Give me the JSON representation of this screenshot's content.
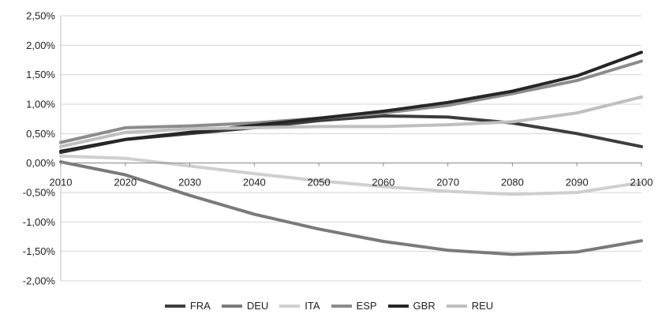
{
  "chart_data": {
    "type": "line",
    "title": "",
    "xlabel": "",
    "ylabel": "",
    "x": [
      2010,
      2020,
      2030,
      2040,
      2050,
      2060,
      2070,
      2080,
      2090,
      2100
    ],
    "x_tick_labels": [
      "2010",
      "2020",
      "2030",
      "2040",
      "2050",
      "2060",
      "2070",
      "2080",
      "2090",
      "2100"
    ],
    "y_tick_labels": [
      "2,50%",
      "2,00%",
      "1,50%",
      "1,00%",
      "0,50%",
      "0,00%",
      "-0,50%",
      "-1,00%",
      "-1,50%",
      "-2,00%"
    ],
    "ylim": [
      -2.0,
      2.5
    ],
    "y_unit": "%",
    "grid": "horizontal",
    "legend_position": "bottom",
    "series": [
      {
        "name": "FRA",
        "color": "#3d3d3d",
        "values": [
          0.18,
          0.4,
          0.5,
          0.6,
          0.72,
          0.8,
          0.78,
          0.68,
          0.5,
          0.28
        ]
      },
      {
        "name": "DEU",
        "color": "#7a7a7a",
        "values": [
          0.02,
          -0.2,
          -0.55,
          -0.87,
          -1.12,
          -1.33,
          -1.48,
          -1.55,
          -1.51,
          -1.32
        ]
      },
      {
        "name": "ITA",
        "color": "#cfcfcf",
        "values": [
          0.12,
          0.08,
          -0.05,
          -0.18,
          -0.3,
          -0.4,
          -0.48,
          -0.53,
          -0.5,
          -0.33
        ]
      },
      {
        "name": "ESP",
        "color": "#8c8c8c",
        "values": [
          0.35,
          0.6,
          0.63,
          0.68,
          0.76,
          0.85,
          0.98,
          1.18,
          1.4,
          1.73
        ]
      },
      {
        "name": "GBR",
        "color": "#262626",
        "values": [
          0.2,
          0.4,
          0.52,
          0.64,
          0.76,
          0.88,
          1.03,
          1.22,
          1.48,
          1.88
        ]
      },
      {
        "name": "REU",
        "color": "#bfbfbf",
        "values": [
          0.28,
          0.52,
          0.58,
          0.6,
          0.62,
          0.62,
          0.65,
          0.7,
          0.85,
          1.12
        ]
      }
    ]
  }
}
